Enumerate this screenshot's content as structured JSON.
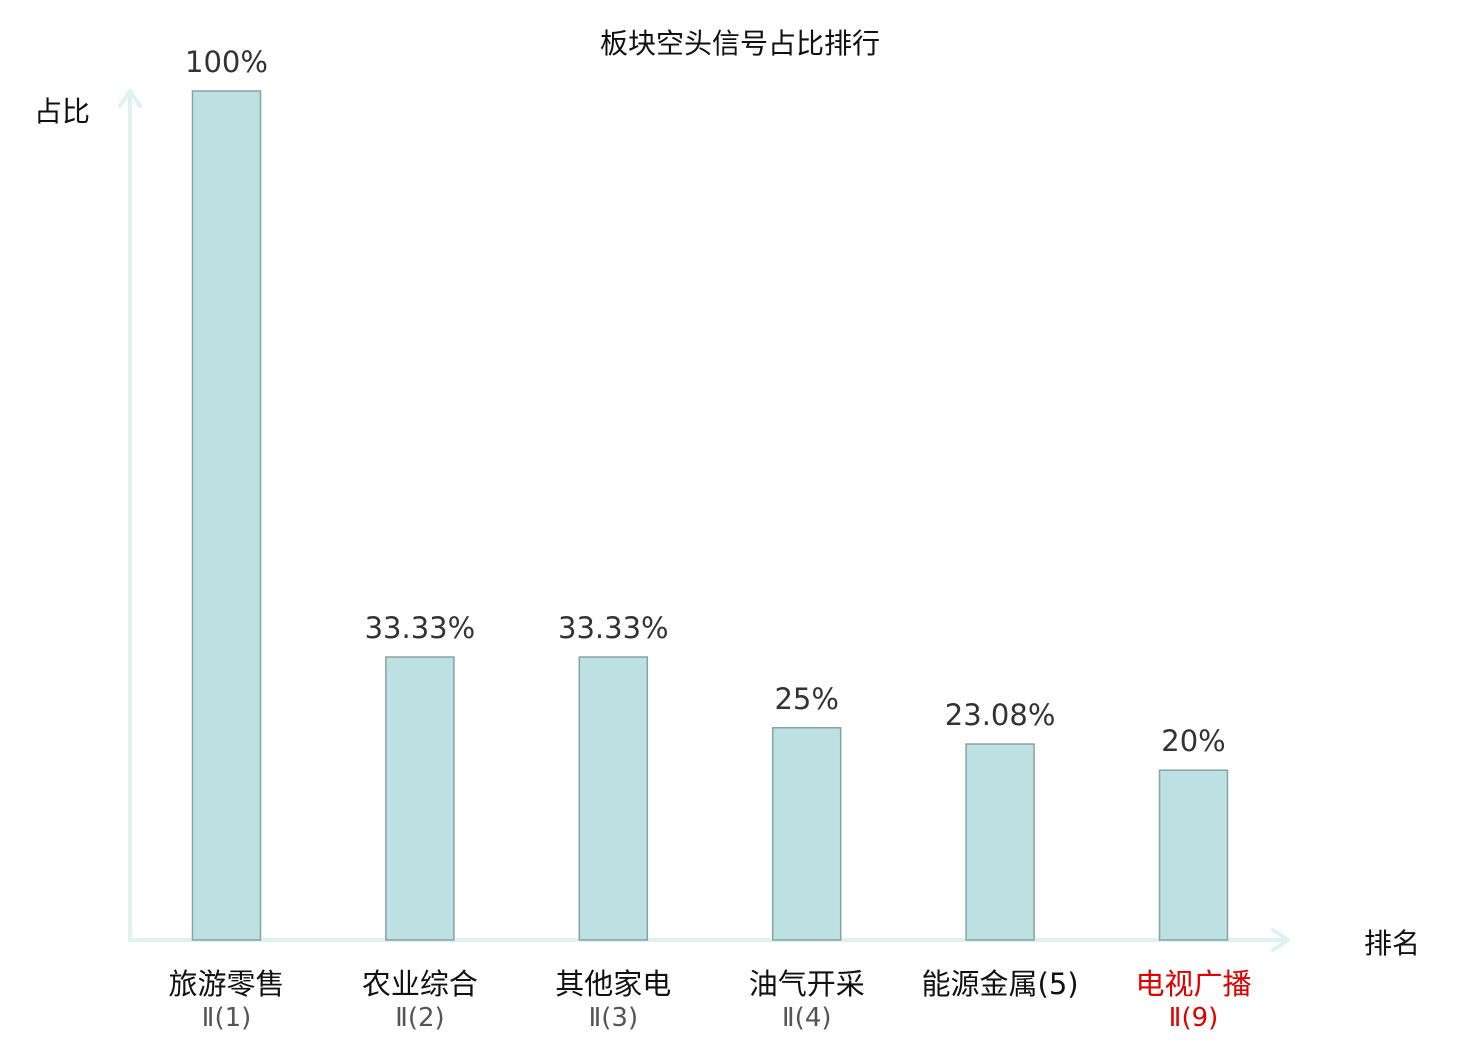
{
  "chart_data": {
    "type": "bar",
    "title": "板块空头信号占比排行",
    "ylabel": "占比",
    "xlabel": "排名",
    "ylim": [
      0,
      100
    ],
    "grid": false,
    "categories": [
      {
        "name": "旅游零售",
        "sub": "Ⅱ(1)",
        "highlight": false
      },
      {
        "name": "农业综合",
        "sub": "Ⅱ(2)",
        "highlight": false
      },
      {
        "name": "其他家电",
        "sub": "Ⅱ(3)",
        "highlight": false
      },
      {
        "name": "油气开采",
        "sub": "Ⅱ(4)",
        "highlight": false
      },
      {
        "name": "能源金属(5)",
        "sub": "",
        "highlight": false
      },
      {
        "name": "电视广播",
        "sub": "Ⅱ(9)",
        "highlight": true
      }
    ],
    "values": [
      100,
      33.33,
      33.33,
      25,
      23.08,
      20
    ],
    "value_labels": [
      "100%",
      "33.33%",
      "33.33%",
      "25%",
      "23.08%",
      "20%"
    ]
  },
  "colors": {
    "bar_fill": "#bde0e3",
    "bar_stroke": "#86a3a6",
    "axis": "#dff2ef",
    "highlight_text": "#e00000",
    "normal_text": "#111111",
    "sub_text": "#555555"
  }
}
